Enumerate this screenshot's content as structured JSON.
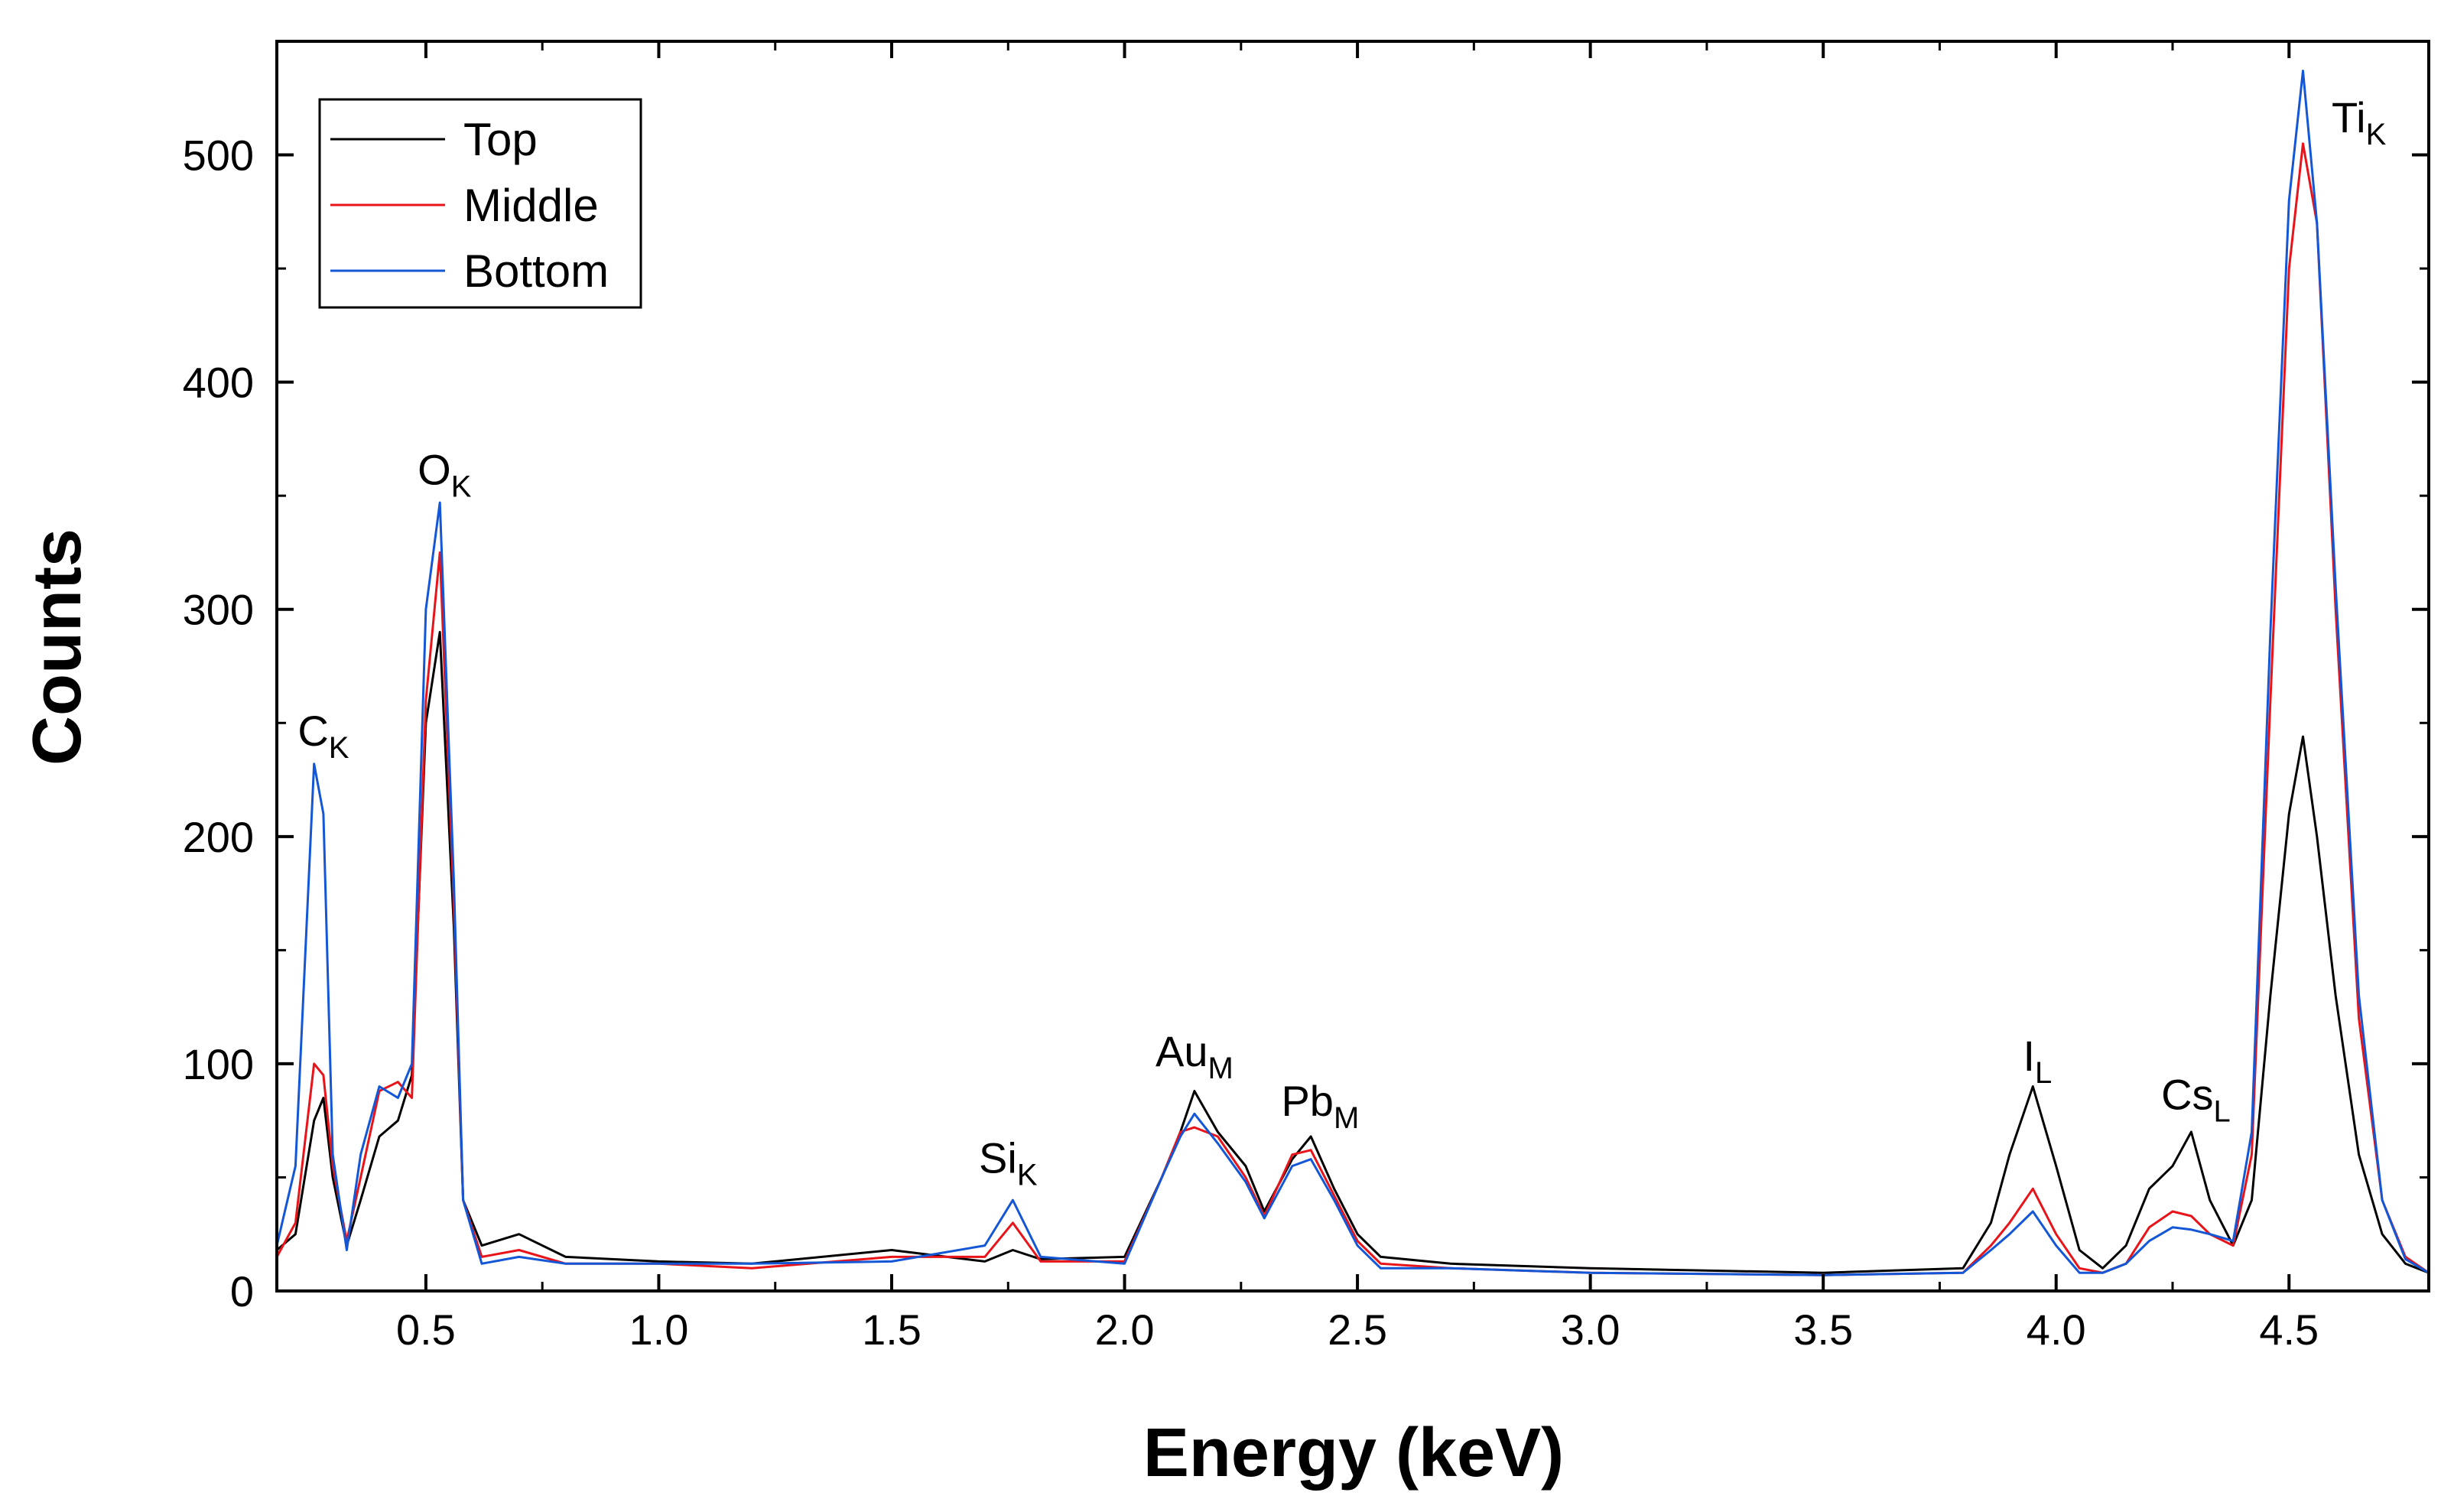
{
  "chart_data": {
    "type": "line",
    "title": "",
    "xlabel": "Energy (keV)",
    "ylabel": "Counts",
    "xlim": [
      0.18,
      4.8
    ],
    "ylim": [
      0,
      550
    ],
    "xticks": [
      0.5,
      1.0,
      1.5,
      2.0,
      2.5,
      3.0,
      3.5,
      4.0,
      4.5
    ],
    "xtick_labels": [
      "0.5",
      "1.0",
      "1.5",
      "2.0",
      "2.5",
      "3.0",
      "3.5",
      "4.0",
      "4.5"
    ],
    "yticks": [
      0,
      100,
      200,
      300,
      400,
      500
    ],
    "ytick_labels": [
      "0",
      "100",
      "200",
      "300",
      "400",
      "500"
    ],
    "legend": {
      "position": "top-left",
      "entries": [
        "Top",
        "Middle",
        "Bottom"
      ]
    },
    "colors": {
      "Top": "#000000",
      "Middle": "#e8141a",
      "Bottom": "#1457d6"
    },
    "series": [
      {
        "name": "Top",
        "x": [
          0.18,
          0.22,
          0.26,
          0.28,
          0.3,
          0.33,
          0.36,
          0.4,
          0.44,
          0.47,
          0.5,
          0.53,
          0.56,
          0.58,
          0.62,
          0.7,
          0.8,
          1.0,
          1.2,
          1.5,
          1.7,
          1.76,
          1.82,
          2.0,
          2.08,
          2.12,
          2.15,
          2.2,
          2.26,
          2.3,
          2.36,
          2.4,
          2.45,
          2.5,
          2.55,
          2.7,
          3.0,
          3.5,
          3.8,
          3.86,
          3.9,
          3.95,
          4.0,
          4.05,
          4.1,
          4.15,
          4.2,
          4.25,
          4.29,
          4.33,
          4.38,
          4.42,
          4.46,
          4.5,
          4.53,
          4.56,
          4.6,
          4.65,
          4.7,
          4.75,
          4.8
        ],
        "values": [
          18,
          25,
          75,
          85,
          50,
          20,
          40,
          68,
          75,
          95,
          250,
          290,
          160,
          40,
          20,
          25,
          15,
          13,
          12,
          18,
          13,
          18,
          14,
          15,
          50,
          70,
          88,
          70,
          55,
          35,
          58,
          68,
          45,
          25,
          15,
          12,
          10,
          8,
          10,
          30,
          60,
          90,
          55,
          18,
          10,
          20,
          45,
          55,
          70,
          40,
          20,
          40,
          130,
          210,
          244,
          200,
          130,
          60,
          25,
          12,
          8
        ]
      },
      {
        "name": "Middle",
        "x": [
          0.18,
          0.22,
          0.26,
          0.28,
          0.3,
          0.33,
          0.36,
          0.4,
          0.44,
          0.47,
          0.5,
          0.53,
          0.56,
          0.58,
          0.62,
          0.7,
          0.8,
          1.0,
          1.2,
          1.5,
          1.7,
          1.76,
          1.82,
          2.0,
          2.08,
          2.12,
          2.15,
          2.2,
          2.26,
          2.3,
          2.36,
          2.4,
          2.45,
          2.5,
          2.55,
          2.7,
          3.0,
          3.5,
          3.8,
          3.86,
          3.9,
          3.95,
          4.0,
          4.05,
          4.1,
          4.15,
          4.2,
          4.25,
          4.29,
          4.33,
          4.38,
          4.42,
          4.46,
          4.5,
          4.53,
          4.56,
          4.6,
          4.65,
          4.7,
          4.75,
          4.8
        ],
        "values": [
          15,
          30,
          100,
          95,
          55,
          22,
          50,
          88,
          92,
          85,
          260,
          325,
          170,
          40,
          15,
          18,
          12,
          12,
          10,
          15,
          15,
          30,
          13,
          13,
          50,
          70,
          72,
          68,
          50,
          33,
          60,
          62,
          42,
          22,
          12,
          10,
          8,
          7,
          8,
          20,
          30,
          45,
          25,
          10,
          8,
          12,
          28,
          35,
          33,
          25,
          20,
          60,
          260,
          450,
          505,
          470,
          300,
          120,
          40,
          15,
          8
        ]
      },
      {
        "name": "Bottom",
        "x": [
          0.18,
          0.22,
          0.26,
          0.28,
          0.3,
          0.33,
          0.36,
          0.4,
          0.44,
          0.47,
          0.5,
          0.53,
          0.56,
          0.58,
          0.62,
          0.7,
          0.8,
          1.0,
          1.2,
          1.5,
          1.7,
          1.76,
          1.82,
          2.0,
          2.08,
          2.12,
          2.15,
          2.2,
          2.26,
          2.3,
          2.36,
          2.4,
          2.45,
          2.5,
          2.55,
          2.7,
          3.0,
          3.5,
          3.8,
          3.86,
          3.9,
          3.95,
          4.0,
          4.05,
          4.1,
          4.15,
          4.2,
          4.25,
          4.29,
          4.33,
          4.38,
          4.42,
          4.46,
          4.5,
          4.53,
          4.56,
          4.6,
          4.65,
          4.7,
          4.75,
          4.8
        ],
        "values": [
          20,
          55,
          232,
          210,
          60,
          18,
          60,
          90,
          85,
          100,
          300,
          347,
          180,
          40,
          12,
          15,
          12,
          12,
          12,
          13,
          20,
          40,
          15,
          12,
          50,
          68,
          78,
          65,
          48,
          32,
          55,
          58,
          40,
          20,
          10,
          10,
          8,
          7,
          8,
          18,
          25,
          35,
          20,
          8,
          8,
          12,
          22,
          28,
          27,
          25,
          22,
          70,
          290,
          480,
          537,
          470,
          310,
          130,
          40,
          14,
          8
        ]
      }
    ],
    "annotations": [
      {
        "base": "C",
        "sub": "K",
        "x": 0.28,
        "y": 240
      },
      {
        "base": "O",
        "sub": "K",
        "x": 0.54,
        "y": 355
      },
      {
        "base": "Si",
        "sub": "K",
        "x": 1.75,
        "y": 52
      },
      {
        "base": "Au",
        "sub": "M",
        "x": 2.15,
        "y": 99
      },
      {
        "base": "Pb",
        "sub": "M",
        "x": 2.42,
        "y": 77
      },
      {
        "base": "I",
        "sub": "L",
        "x": 3.96,
        "y": 97
      },
      {
        "base": "Cs",
        "sub": "L",
        "x": 4.3,
        "y": 80
      },
      {
        "base": "Ti",
        "sub": "K",
        "x": 4.65,
        "y": 510
      }
    ]
  }
}
